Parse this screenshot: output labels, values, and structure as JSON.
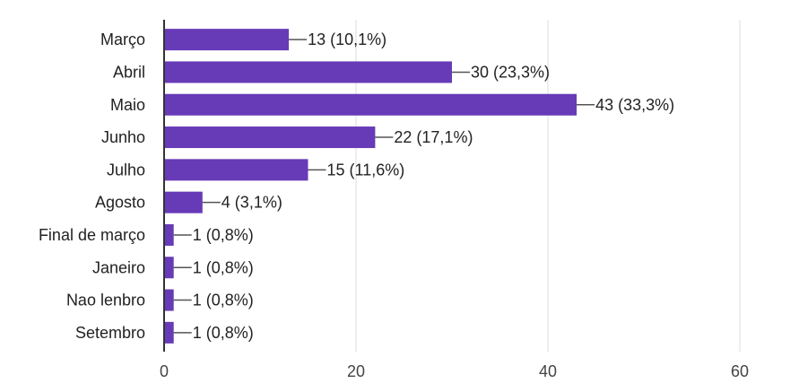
{
  "chart_data": {
    "type": "bar",
    "orientation": "horizontal",
    "categories": [
      "Março",
      "Abril",
      "Maio",
      "Junho",
      "Julho",
      "Agosto",
      "Final de março",
      "Janeiro",
      "Nao lenbro",
      "Setembro"
    ],
    "values": [
      13,
      30,
      43,
      22,
      15,
      4,
      1,
      1,
      1,
      1
    ],
    "data_labels": [
      "13 (10,1%)",
      "30 (23,3%)",
      "43 (33,3%)",
      "22 (17,1%)",
      "15 (11,6%)",
      "4 (3,1%)",
      "1 (0,8%)",
      "1 (0,8%)",
      "1 (0,8%)",
      "1 (0,8%)"
    ],
    "xlim": [
      0,
      60
    ],
    "xticks": [
      0,
      20,
      40,
      60
    ],
    "xtick_labels": [
      "0",
      "20",
      "40",
      "60"
    ],
    "grid": true,
    "bar_color": "#673ab7",
    "title": "",
    "xlabel": "",
    "ylabel": ""
  }
}
